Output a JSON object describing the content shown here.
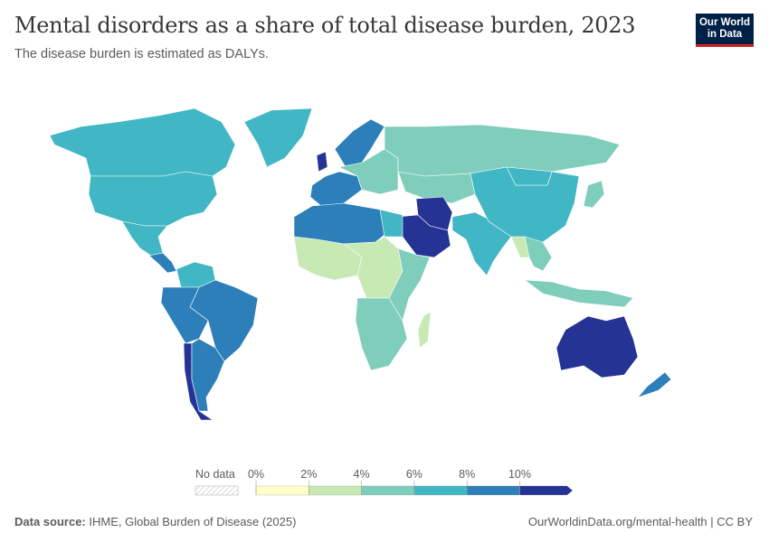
{
  "header": {
    "title": "Mental disorders as a share of total disease burden, 2023",
    "subtitle": "The disease burden is estimated as DALYs.",
    "logo": "Our World in Data"
  },
  "footer": {
    "source_label": "Data source:",
    "source": "IHME, Global Burden of Disease (2025)",
    "link": "OurWorldinData.org/mental-health | CC BY"
  },
  "chart_data": {
    "type": "choropleth-map",
    "title": "Mental disorders as a share of total disease burden, 2023",
    "unit": "%",
    "legend": {
      "no_data_label": "No data",
      "bins": [
        0,
        2,
        4,
        6,
        8,
        10
      ],
      "tick_labels": [
        "0%",
        "2%",
        "4%",
        "6%",
        "8%",
        "10%"
      ],
      "colors": [
        "#ffffcc",
        "#c7e9b4",
        "#7fcdbb",
        "#41b6c4",
        "#2c7fb8",
        "#253494"
      ],
      "placement": "bottom"
    },
    "regions": [
      {
        "name": "Canada",
        "value": 7
      },
      {
        "name": "United States",
        "value": 7
      },
      {
        "name": "Greenland",
        "value": 7
      },
      {
        "name": "Mexico",
        "value": 7
      },
      {
        "name": "Central America",
        "value": 8.5
      },
      {
        "name": "Colombia/Venezuela",
        "value": 7
      },
      {
        "name": "Brazil",
        "value": 9
      },
      {
        "name": "Peru/Bolivia",
        "value": 9
      },
      {
        "name": "Chile",
        "value": 10.5
      },
      {
        "name": "Argentina",
        "value": 9
      },
      {
        "name": "United Kingdom",
        "value": 10.5
      },
      {
        "name": "Western Europe",
        "value": 8.5
      },
      {
        "name": "Scandinavia",
        "value": 8.5
      },
      {
        "name": "Eastern Europe",
        "value": 5
      },
      {
        "name": "Russia",
        "value": 5
      },
      {
        "name": "Central Asia",
        "value": 5
      },
      {
        "name": "Iran",
        "value": 10.5
      },
      {
        "name": "Saudi Arabia",
        "value": 10.5
      },
      {
        "name": "North Africa",
        "value": 8.5
      },
      {
        "name": "Egypt",
        "value": 7
      },
      {
        "name": "West Africa",
        "value": 3
      },
      {
        "name": "Central Africa",
        "value": 3
      },
      {
        "name": "East Africa",
        "value": 5
      },
      {
        "name": "Southern Africa",
        "value": 5
      },
      {
        "name": "Madagascar",
        "value": 3
      },
      {
        "name": "India",
        "value": 7
      },
      {
        "name": "China",
        "value": 7
      },
      {
        "name": "Mongolia",
        "value": 6.5
      },
      {
        "name": "Japan",
        "value": 5
      },
      {
        "name": "Myanmar",
        "value": 3
      },
      {
        "name": "Southeast Asia",
        "value": 5
      },
      {
        "name": "Indonesia",
        "value": 5
      },
      {
        "name": "Australia",
        "value": 10.5
      },
      {
        "name": "New Zealand",
        "value": 9
      }
    ]
  }
}
